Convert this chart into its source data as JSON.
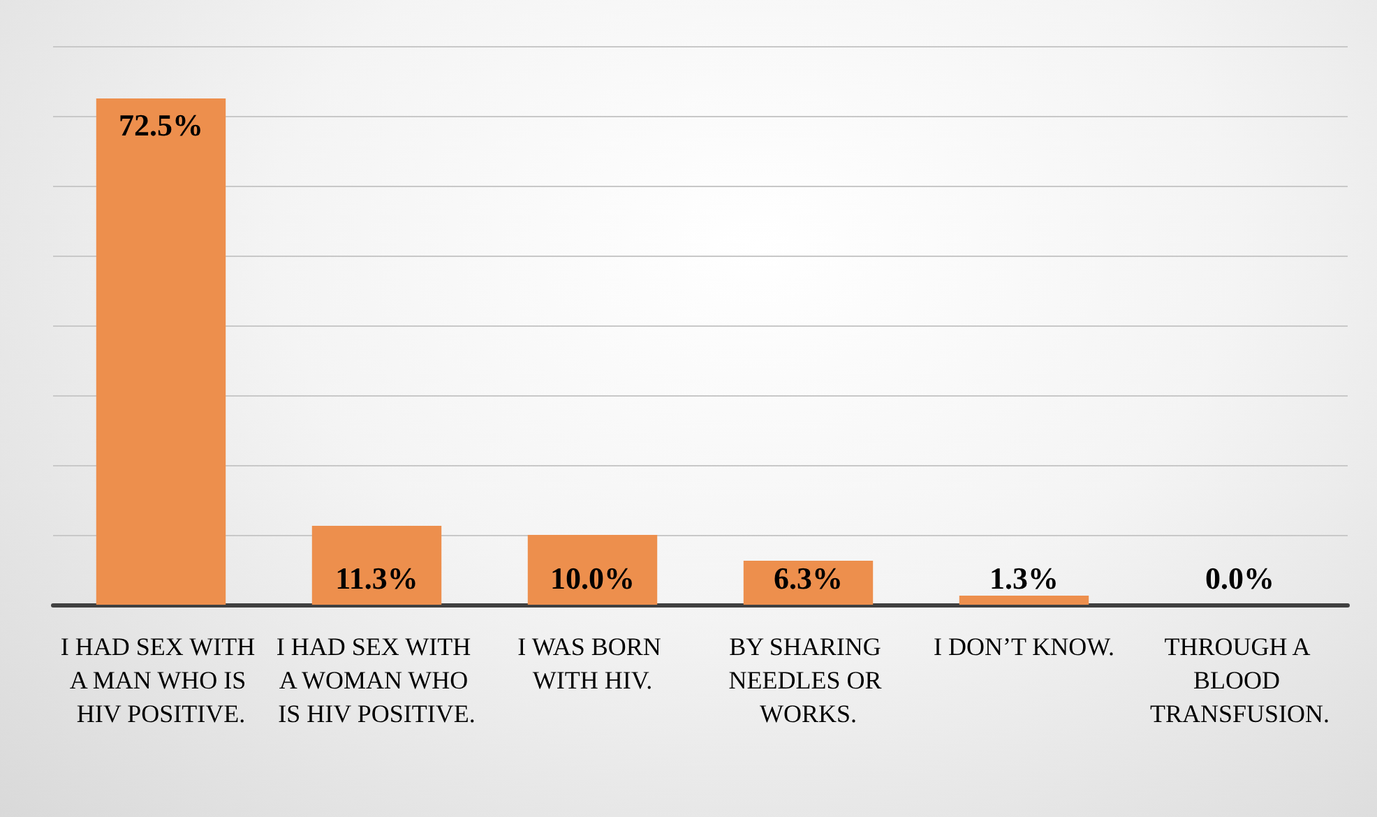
{
  "chart_data": {
    "type": "bar",
    "categories": [
      "I HAD SEX WITH A MAN WHO IS HIV POSITIVE.",
      "I HAD SEX WITH A WOMAN WHO IS HIV POSITIVE.",
      "I WAS BORN WITH HIV.",
      "BY SHARING NEEDLES OR WORKS.",
      "I DON’T KNOW.",
      "THROUGH A BLOOD TRANSFUSION."
    ],
    "values": [
      72.5,
      11.3,
      10.0,
      6.3,
      1.3,
      0.0
    ],
    "value_labels": [
      "72.5%",
      "11.3%",
      "10.0%",
      "6.3%",
      "1.3%",
      "0.0%"
    ],
    "color": "#ed8f4d",
    "ylim": [
      0,
      80
    ],
    "yticks": [
      {
        "value": 0,
        "label": null
      },
      {
        "value": 10,
        "label": null
      },
      {
        "value": 20,
        "label": null
      },
      {
        "value": 30,
        "label": null
      },
      {
        "value": 40,
        "label": null
      },
      {
        "value": 50,
        "label": null
      },
      {
        "value": 60,
        "label": null
      },
      {
        "value": 70,
        "label": null
      },
      {
        "value": 80,
        "label": null
      }
    ],
    "tick_labels": "x",
    "grid": "y"
  }
}
